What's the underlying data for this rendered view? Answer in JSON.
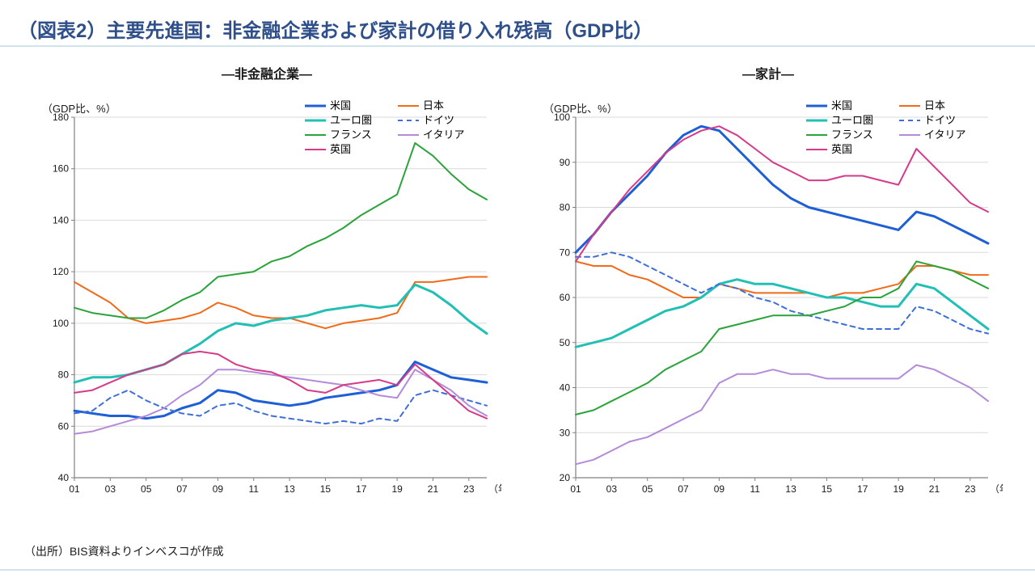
{
  "title": "（図表2）主要先進国：非金融企業および家計の借り入れ残高（GDP比）",
  "source": "（出所）BIS資料よりインベスコが作成",
  "common": {
    "x_years": [
      2001,
      2002,
      2003,
      2004,
      2005,
      2006,
      2007,
      2008,
      2009,
      2010,
      2011,
      2012,
      2013,
      2014,
      2015,
      2016,
      2017,
      2018,
      2019,
      2020,
      2021,
      2022,
      2023,
      2024
    ],
    "x_ticks": [
      2001,
      2003,
      2005,
      2007,
      2009,
      2011,
      2013,
      2015,
      2017,
      2019,
      2021,
      2023
    ],
    "x_tick_labels": [
      "01",
      "03",
      "05",
      "07",
      "09",
      "11",
      "13",
      "15",
      "17",
      "19",
      "21",
      "23"
    ],
    "x_axis_suffix": "（年）",
    "y_axis_label": "（GDP比、%）",
    "grid_color": "#d9d9d9",
    "axis_color": "#808080",
    "background": "#ffffff",
    "label_fontsize": 13,
    "tick_fontsize": 12,
    "title_fontsize": 24,
    "title_color": "#2f4f8a",
    "rule_color": "#d0e4ee",
    "legend_cols": 2,
    "series_meta": [
      {
        "key": "us",
        "label": "米国",
        "color": "#1f5fd6",
        "width": 3,
        "dash": ""
      },
      {
        "key": "jp",
        "label": "日本",
        "color": "#f06a1a",
        "width": 2,
        "dash": ""
      },
      {
        "key": "euro",
        "label": "ユーロ圏",
        "color": "#22bfb4",
        "width": 3,
        "dash": ""
      },
      {
        "key": "de",
        "label": "ドイツ",
        "color": "#3f6fd6",
        "width": 2,
        "dash": "6 5"
      },
      {
        "key": "fr",
        "label": "フランス",
        "color": "#2aa33a",
        "width": 2,
        "dash": ""
      },
      {
        "key": "it",
        "label": "イタリア",
        "color": "#b48ad9",
        "width": 2,
        "dash": ""
      },
      {
        "key": "uk",
        "label": "英国",
        "color": "#d63a8a",
        "width": 2,
        "dash": ""
      }
    ]
  },
  "left": {
    "subtitle": "—非金融企業—",
    "ylim": [
      40,
      180
    ],
    "ytick_step": 20,
    "series": {
      "us": [
        66,
        65,
        64,
        64,
        63,
        64,
        67,
        69,
        74,
        73,
        70,
        69,
        68,
        69,
        71,
        72,
        73,
        74,
        76,
        85,
        82,
        79,
        78,
        77
      ],
      "jp": [
        116,
        112,
        108,
        102,
        100,
        101,
        102,
        104,
        108,
        106,
        103,
        102,
        102,
        100,
        98,
        100,
        101,
        102,
        104,
        116,
        116,
        117,
        118,
        118
      ],
      "euro": [
        77,
        79,
        79,
        80,
        82,
        84,
        88,
        92,
        97,
        100,
        99,
        101,
        102,
        103,
        105,
        106,
        107,
        106,
        107,
        115,
        112,
        107,
        101,
        96
      ],
      "de": [
        65,
        66,
        71,
        74,
        70,
        67,
        65,
        64,
        68,
        69,
        66,
        64,
        63,
        62,
        61,
        62,
        61,
        63,
        62,
        72,
        74,
        72,
        70,
        68
      ],
      "fr": [
        106,
        104,
        103,
        102,
        102,
        105,
        109,
        112,
        118,
        119,
        120,
        124,
        126,
        130,
        133,
        137,
        142,
        146,
        150,
        170,
        165,
        158,
        152,
        148
      ],
      "it": [
        57,
        58,
        60,
        62,
        64,
        67,
        72,
        76,
        82,
        82,
        81,
        80,
        79,
        78,
        77,
        76,
        74,
        72,
        71,
        82,
        78,
        74,
        68,
        64
      ],
      "uk": [
        73,
        74,
        77,
        80,
        82,
        84,
        88,
        89,
        88,
        84,
        82,
        81,
        78,
        74,
        73,
        76,
        77,
        78,
        76,
        84,
        78,
        72,
        66,
        63
      ]
    }
  },
  "right": {
    "subtitle": "—家計—",
    "ylim": [
      20,
      100
    ],
    "ytick_step": 10,
    "series": {
      "us": [
        70,
        74,
        79,
        83,
        87,
        92,
        96,
        98,
        97,
        93,
        89,
        85,
        82,
        80,
        79,
        78,
        77,
        76,
        75,
        79,
        78,
        76,
        74,
        72
      ],
      "jp": [
        68,
        67,
        67,
        65,
        64,
        62,
        60,
        60,
        63,
        62,
        61,
        61,
        61,
        61,
        60,
        61,
        61,
        62,
        63,
        67,
        67,
        66,
        65,
        65
      ],
      "euro": [
        49,
        50,
        51,
        53,
        55,
        57,
        58,
        60,
        63,
        64,
        63,
        63,
        62,
        61,
        60,
        60,
        59,
        58,
        58,
        63,
        62,
        59,
        56,
        53
      ],
      "de": [
        69,
        69,
        70,
        69,
        67,
        65,
        63,
        61,
        63,
        62,
        60,
        59,
        57,
        56,
        55,
        54,
        53,
        53,
        53,
        58,
        57,
        55,
        53,
        52
      ],
      "fr": [
        34,
        35,
        37,
        39,
        41,
        44,
        46,
        48,
        53,
        54,
        55,
        56,
        56,
        56,
        57,
        58,
        60,
        60,
        62,
        68,
        67,
        66,
        64,
        62
      ],
      "it": [
        23,
        24,
        26,
        28,
        29,
        31,
        33,
        35,
        41,
        43,
        43,
        44,
        43,
        43,
        42,
        42,
        42,
        42,
        42,
        45,
        44,
        42,
        40,
        37
      ],
      "uk": [
        68,
        74,
        79,
        84,
        88,
        92,
        95,
        97,
        98,
        96,
        93,
        90,
        88,
        86,
        86,
        87,
        87,
        86,
        85,
        93,
        89,
        85,
        81,
        79
      ]
    }
  }
}
